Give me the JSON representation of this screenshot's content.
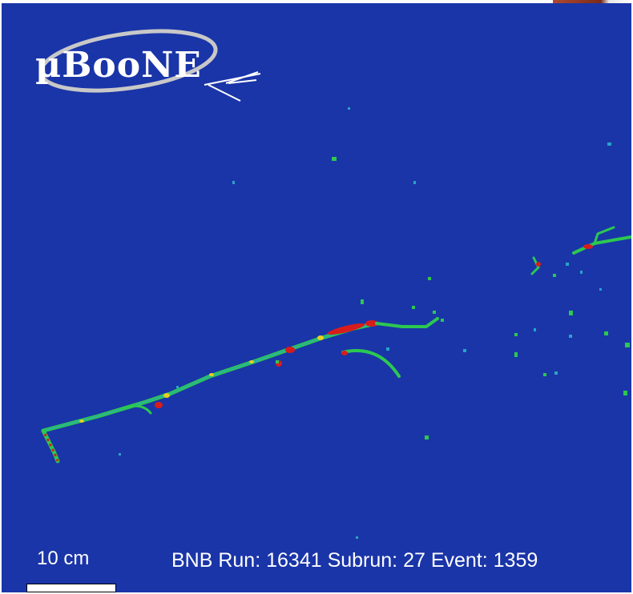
{
  "logo": {
    "text": "µBooNE"
  },
  "scale": {
    "label": "10 cm"
  },
  "event_info": {
    "text": "BNB Run: 16341 Subrun: 27 Event: 1359"
  },
  "colors": {
    "background": "#1a35a8",
    "track_low": "#2aa3c8",
    "track_mid": "#2cc850",
    "track_high": "#e8d020",
    "track_peak": "#d81c1c"
  }
}
